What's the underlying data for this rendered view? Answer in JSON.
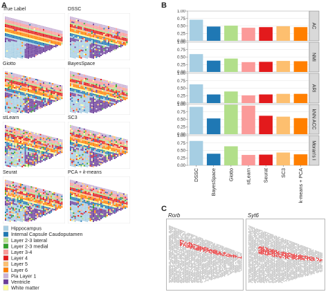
{
  "panel_a": {
    "letter": "A",
    "tiles": [
      {
        "title": "True Label"
      },
      {
        "title": "DSSC"
      },
      {
        "title": "Giotto"
      },
      {
        "title": "BayesSpace"
      },
      {
        "title": "stLearn"
      },
      {
        "title": "SC3"
      },
      {
        "title": "Seurat"
      },
      {
        "title_prefix": "PCA + ",
        "title_italic": "k",
        "title_suffix": "-means"
      }
    ],
    "legend": [
      {
        "label": "Hippocampus",
        "color": "#a6cee3"
      },
      {
        "label": "Internal Capsule Caudoputamen",
        "color": "#1f78b4"
      },
      {
        "label": "Layer 2-3 lateral",
        "color": "#b2df8a"
      },
      {
        "label": "Layer 2-3 medial",
        "color": "#33a02c"
      },
      {
        "label": "Layer 3-4",
        "color": "#fb9a99"
      },
      {
        "label": "Layer 4",
        "color": "#e31a1c"
      },
      {
        "label": "Layer 5",
        "color": "#fdbf6f"
      },
      {
        "label": "Layer 6",
        "color": "#ff7f00"
      },
      {
        "label": "Pia Layer 1",
        "color": "#cab2d6"
      },
      {
        "label": "Ventricle",
        "color": "#6a3d9a"
      },
      {
        "label": "White matter",
        "color": "#ffff99"
      }
    ]
  },
  "panel_b": {
    "letter": "B"
  },
  "panel_c": {
    "letter": "C",
    "maps": [
      {
        "title": "Rorb"
      },
      {
        "title": "Syt6"
      }
    ]
  },
  "chart_data": {
    "type": "bar",
    "categories": [
      "DSSC",
      "BayesSpace",
      "Giotto",
      "stLearn",
      "Seurat",
      "SC3",
      "k-means + PCA"
    ],
    "category_colors": [
      "#a6cee3",
      "#1f78b4",
      "#b2df8a",
      "#fb9a99",
      "#e31a1c",
      "#fdbf6f",
      "#ff7f00"
    ],
    "ylim": [
      0,
      1.0
    ],
    "yticks": [
      0.0,
      0.25,
      0.5,
      0.75,
      1.0
    ],
    "ytick_labels": [
      "0.00",
      "0.25",
      "0.50",
      "0.75",
      "1.00"
    ],
    "grid": true,
    "facets": [
      {
        "name": "AC",
        "values": [
          0.71,
          0.48,
          0.51,
          0.44,
          0.46,
          0.49,
          0.46
        ]
      },
      {
        "name": "NMI",
        "values": [
          0.6,
          0.38,
          0.45,
          0.33,
          0.34,
          0.37,
          0.36
        ]
      },
      {
        "name": "ARI",
        "values": [
          0.63,
          0.29,
          0.39,
          0.26,
          0.29,
          0.31,
          0.31
        ]
      },
      {
        "name": "kNN ACC",
        "values": [
          0.92,
          0.53,
          0.99,
          0.96,
          0.62,
          0.59,
          0.54
        ]
      },
      {
        "name": "Moran's I",
        "values": [
          0.82,
          0.39,
          0.64,
          0.35,
          0.36,
          0.43,
          0.37
        ]
      }
    ]
  }
}
